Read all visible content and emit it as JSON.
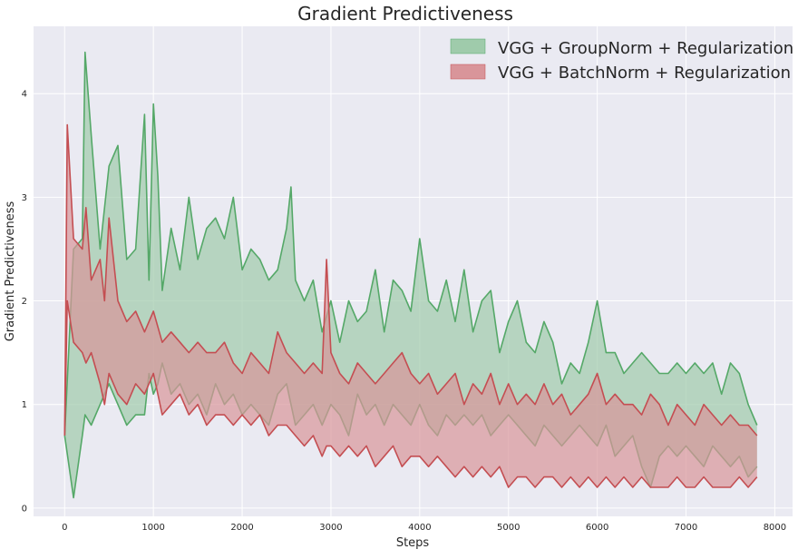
{
  "chart_data": {
    "type": "area",
    "title": "Gradient Predictiveness",
    "xlabel": "Steps",
    "ylabel": "Gradient Predictiveness",
    "xlim": [
      -350,
      8200
    ],
    "ylim": [
      -0.08,
      4.65
    ],
    "xticks": [
      0,
      1000,
      2000,
      3000,
      4000,
      5000,
      6000,
      7000,
      8000
    ],
    "yticks": [
      0,
      1,
      2,
      3,
      4
    ],
    "grid": true,
    "legend_position": "top-right",
    "series": [
      {
        "name": "VGG + GroupNorm + Regularization",
        "color": "#55a868",
        "fill": "#9fcbab",
        "x": [
          0,
          100,
          200,
          230,
          300,
          400,
          500,
          600,
          700,
          800,
          900,
          950,
          1000,
          1050,
          1100,
          1200,
          1300,
          1400,
          1500,
          1600,
          1700,
          1800,
          1900,
          2000,
          2100,
          2200,
          2300,
          2400,
          2500,
          2550,
          2600,
          2700,
          2800,
          2900,
          3000,
          3100,
          3200,
          3300,
          3400,
          3500,
          3600,
          3700,
          3800,
          3900,
          4000,
          4100,
          4200,
          4300,
          4400,
          4500,
          4600,
          4700,
          4800,
          4900,
          5000,
          5100,
          5200,
          5300,
          5400,
          5500,
          5600,
          5700,
          5800,
          5900,
          6000,
          6100,
          6200,
          6300,
          6400,
          6500,
          6600,
          6700,
          6800,
          6900,
          7000,
          7100,
          7200,
          7300,
          7400,
          7500,
          7600,
          7700,
          7800
        ],
        "upper": [
          0.7,
          2.5,
          2.6,
          4.4,
          3.6,
          2.5,
          3.3,
          3.5,
          2.4,
          2.5,
          3.8,
          2.2,
          3.9,
          3.2,
          2.1,
          2.7,
          2.3,
          3.0,
          2.4,
          2.7,
          2.8,
          2.6,
          3.0,
          2.3,
          2.5,
          2.4,
          2.2,
          2.3,
          2.7,
          3.1,
          2.2,
          2.0,
          2.2,
          1.7,
          2.0,
          1.6,
          2.0,
          1.8,
          1.9,
          2.3,
          1.7,
          2.2,
          2.1,
          1.9,
          2.6,
          2.0,
          1.9,
          2.2,
          1.8,
          2.3,
          1.7,
          2.0,
          2.1,
          1.5,
          1.8,
          2.0,
          1.6,
          1.5,
          1.8,
          1.6,
          1.2,
          1.4,
          1.3,
          1.6,
          2.0,
          1.5,
          1.5,
          1.3,
          1.4,
          1.5,
          1.4,
          1.3,
          1.3,
          1.4,
          1.3,
          1.4,
          1.3,
          1.4,
          1.1,
          1.4,
          1.3,
          1.0,
          0.8
        ],
        "lower": [
          0.7,
          0.1,
          0.7,
          0.9,
          0.8,
          1.0,
          1.2,
          1.0,
          0.8,
          0.9,
          0.9,
          1.3,
          1.1,
          1.2,
          1.4,
          1.1,
          1.2,
          1.0,
          1.1,
          0.9,
          1.2,
          1.0,
          1.1,
          0.9,
          1.0,
          0.9,
          0.8,
          1.1,
          1.2,
          1.0,
          0.8,
          0.9,
          1.0,
          0.8,
          1.0,
          0.9,
          0.7,
          1.1,
          0.9,
          1.0,
          0.8,
          1.0,
          0.9,
          0.8,
          1.0,
          0.8,
          0.7,
          0.9,
          0.8,
          0.9,
          0.8,
          0.9,
          0.7,
          0.8,
          0.9,
          0.8,
          0.7,
          0.6,
          0.8,
          0.7,
          0.6,
          0.7,
          0.8,
          0.7,
          0.6,
          0.8,
          0.5,
          0.6,
          0.7,
          0.4,
          0.2,
          0.5,
          0.6,
          0.5,
          0.6,
          0.5,
          0.4,
          0.6,
          0.5,
          0.4,
          0.5,
          0.3,
          0.4
        ]
      },
      {
        "name": "VGG + BatchNorm + Regularization",
        "color": "#c44e52",
        "fill": "#d9959a",
        "x": [
          0,
          30,
          100,
          200,
          240,
          300,
          400,
          450,
          500,
          600,
          700,
          800,
          900,
          1000,
          1100,
          1200,
          1300,
          1400,
          1500,
          1600,
          1700,
          1800,
          1900,
          2000,
          2100,
          2200,
          2300,
          2400,
          2500,
          2600,
          2700,
          2800,
          2900,
          2950,
          3000,
          3100,
          3200,
          3300,
          3400,
          3500,
          3600,
          3700,
          3800,
          3900,
          4000,
          4100,
          4200,
          4300,
          4400,
          4500,
          4600,
          4700,
          4800,
          4900,
          5000,
          5100,
          5200,
          5300,
          5400,
          5500,
          5600,
          5700,
          5800,
          5900,
          6000,
          6100,
          6200,
          6300,
          6400,
          6500,
          6600,
          6700,
          6800,
          6900,
          7000,
          7100,
          7200,
          7300,
          7400,
          7500,
          7600,
          7700,
          7800
        ],
        "upper": [
          0.7,
          3.7,
          2.6,
          2.5,
          2.9,
          2.2,
          2.4,
          2.0,
          2.8,
          2.0,
          1.8,
          1.9,
          1.7,
          1.9,
          1.6,
          1.7,
          1.6,
          1.5,
          1.6,
          1.5,
          1.5,
          1.6,
          1.4,
          1.3,
          1.5,
          1.4,
          1.3,
          1.7,
          1.5,
          1.4,
          1.3,
          1.4,
          1.3,
          2.4,
          1.5,
          1.3,
          1.2,
          1.4,
          1.3,
          1.2,
          1.3,
          1.4,
          1.5,
          1.3,
          1.2,
          1.3,
          1.1,
          1.2,
          1.3,
          1.0,
          1.2,
          1.1,
          1.3,
          1.0,
          1.2,
          1.0,
          1.1,
          1.0,
          1.2,
          1.0,
          1.1,
          0.9,
          1.0,
          1.1,
          1.3,
          1.0,
          1.1,
          1.0,
          1.0,
          0.9,
          1.1,
          1.0,
          0.8,
          1.0,
          0.9,
          0.8,
          1.0,
          0.9,
          0.8,
          0.9,
          0.8,
          0.8,
          0.7
        ],
        "lower": [
          0.7,
          2.0,
          1.6,
          1.5,
          1.4,
          1.5,
          1.2,
          1.0,
          1.3,
          1.1,
          1.0,
          1.2,
          1.1,
          1.3,
          0.9,
          1.0,
          1.1,
          0.9,
          1.0,
          0.8,
          0.9,
          0.9,
          0.8,
          0.9,
          0.8,
          0.9,
          0.7,
          0.8,
          0.8,
          0.7,
          0.6,
          0.7,
          0.5,
          0.6,
          0.6,
          0.5,
          0.6,
          0.5,
          0.6,
          0.4,
          0.5,
          0.6,
          0.4,
          0.5,
          0.5,
          0.4,
          0.5,
          0.4,
          0.3,
          0.4,
          0.3,
          0.4,
          0.3,
          0.4,
          0.2,
          0.3,
          0.3,
          0.2,
          0.3,
          0.3,
          0.2,
          0.3,
          0.2,
          0.3,
          0.2,
          0.3,
          0.2,
          0.3,
          0.2,
          0.3,
          0.2,
          0.2,
          0.2,
          0.3,
          0.2,
          0.2,
          0.3,
          0.2,
          0.2,
          0.2,
          0.3,
          0.2,
          0.3
        ]
      }
    ]
  }
}
